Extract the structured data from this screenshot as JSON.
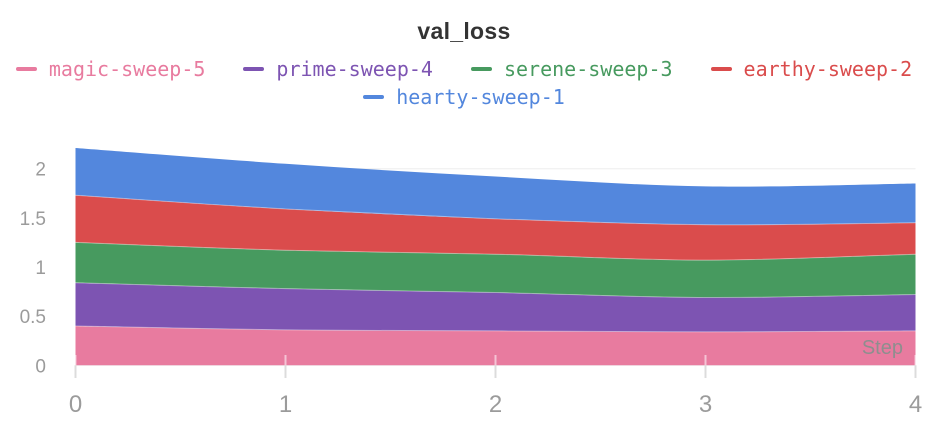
{
  "chart_data": {
    "type": "area",
    "stacked": true,
    "title": "val_loss",
    "xlabel": "Step",
    "x": [
      0,
      1,
      2,
      3,
      4
    ],
    "series": [
      {
        "name": "magic-sweep-5",
        "color": "#E87B9F",
        "values": [
          0.4,
          0.36,
          0.35,
          0.34,
          0.35
        ]
      },
      {
        "name": "prime-sweep-4",
        "color": "#7D54B2",
        "values": [
          0.44,
          0.42,
          0.39,
          0.35,
          0.37
        ]
      },
      {
        "name": "serene-sweep-3",
        "color": "#479A5F",
        "values": [
          0.41,
          0.39,
          0.39,
          0.38,
          0.41
        ]
      },
      {
        "name": "earthy-sweep-2",
        "color": "#DA4C4C",
        "values": [
          0.48,
          0.42,
          0.36,
          0.36,
          0.32
        ]
      },
      {
        "name": "hearty-sweep-1",
        "color": "#5387DD",
        "values": [
          0.48,
          0.46,
          0.43,
          0.39,
          0.4
        ]
      }
    ],
    "xticks": [
      0,
      1,
      2,
      3,
      4
    ],
    "yticks": [
      0,
      0.5,
      1,
      1.5,
      2
    ],
    "xlim": [
      0,
      4
    ],
    "ylim": [
      0,
      2.32
    ],
    "grid": true,
    "legend_position": "top"
  },
  "style": {
    "grid_color": "#ededed",
    "tick_color": "#dcdcdc",
    "tick_label_color": "#9b9b9b",
    "axis_label_color": "#8e8e8e",
    "title_color": "#333333"
  }
}
